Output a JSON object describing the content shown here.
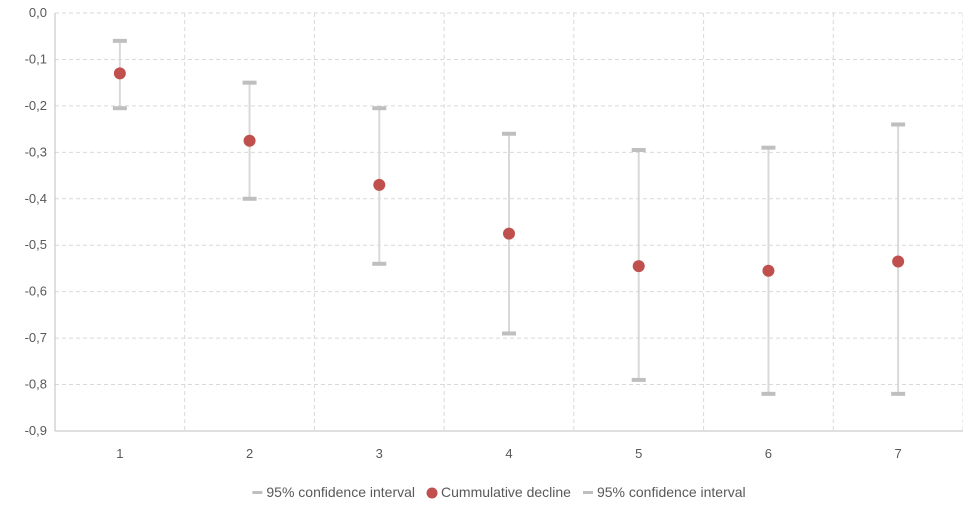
{
  "chart_data": {
    "type": "scatter",
    "title": "",
    "xlabel": "",
    "ylabel": "",
    "categories": [
      "1",
      "2",
      "3",
      "4",
      "5",
      "6",
      "7"
    ],
    "ylim": [
      -0.9,
      0.0
    ],
    "yticks": [
      0.0,
      -0.1,
      -0.2,
      -0.3,
      -0.4,
      -0.5,
      -0.6,
      -0.7,
      -0.8,
      -0.9
    ],
    "ytick_labels": [
      "0,0",
      "-0,1",
      "-0,2",
      "-0,3",
      "-0,4",
      "-0,5",
      "-0,6",
      "-0,7",
      "-0,8",
      "-0,9"
    ],
    "grid": true,
    "legend_position": "bottom",
    "series": [
      {
        "name": "95% confidence interval",
        "marker": "dash",
        "values": [
          -0.06,
          -0.15,
          -0.205,
          -0.26,
          -0.295,
          -0.29,
          -0.24
        ]
      },
      {
        "name": "Cummulative decline",
        "marker": "circle",
        "values": [
          -0.13,
          -0.275,
          -0.37,
          -0.475,
          -0.545,
          -0.555,
          -0.535
        ]
      },
      {
        "name": "95% confidence interval",
        "marker": "dash",
        "values": [
          -0.205,
          -0.4,
          -0.54,
          -0.69,
          -0.79,
          -0.82,
          -0.82
        ]
      }
    ],
    "colors": {
      "point": "#c0504d",
      "interval": "#bfbfbf",
      "grid": "#d9d9d9",
      "axis": "#bfbfbf",
      "text": "#595959"
    }
  }
}
